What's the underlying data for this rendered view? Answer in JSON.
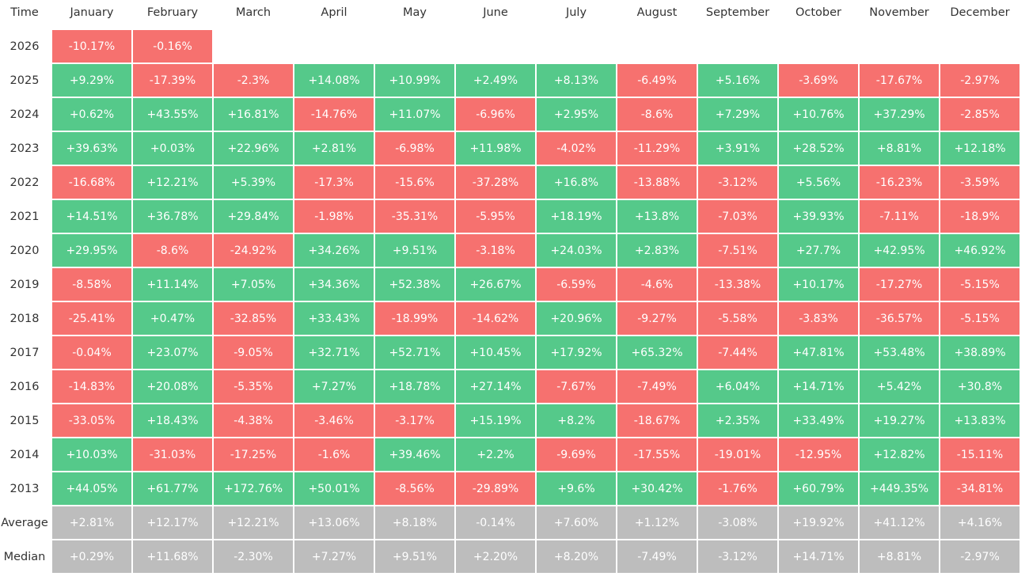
{
  "table": {
    "colors": {
      "positive": "#55c98a",
      "negative": "#f6716f",
      "summary": "#bdbdbd"
    },
    "header": [
      "Time",
      "January",
      "February",
      "March",
      "April",
      "May",
      "June",
      "July",
      "August",
      "September",
      "October",
      "November",
      "December"
    ],
    "rows": [
      [
        "2026",
        "-10.17%",
        "-0.16%"
      ],
      [
        "2025",
        "+9.29%",
        "-17.39%",
        "-2.3%",
        "+14.08%",
        "+10.99%",
        "+2.49%",
        "+8.13%",
        "-6.49%",
        "+5.16%",
        "-3.69%",
        "-17.67%",
        "-2.97%"
      ],
      [
        "2024",
        "+0.62%",
        "+43.55%",
        "+16.81%",
        "-14.76%",
        "+11.07%",
        "-6.96%",
        "+2.95%",
        "-8.6%",
        "+7.29%",
        "+10.76%",
        "+37.29%",
        "-2.85%"
      ],
      [
        "2023",
        "+39.63%",
        "+0.03%",
        "+22.96%",
        "+2.81%",
        "-6.98%",
        "+11.98%",
        "-4.02%",
        "-11.29%",
        "+3.91%",
        "+28.52%",
        "+8.81%",
        "+12.18%"
      ],
      [
        "2022",
        "-16.68%",
        "+12.21%",
        "+5.39%",
        "-17.3%",
        "-15.6%",
        "-37.28%",
        "+16.8%",
        "-13.88%",
        "-3.12%",
        "+5.56%",
        "-16.23%",
        "-3.59%"
      ],
      [
        "2021",
        "+14.51%",
        "+36.78%",
        "+29.84%",
        "-1.98%",
        "-35.31%",
        "-5.95%",
        "+18.19%",
        "+13.8%",
        "-7.03%",
        "+39.93%",
        "-7.11%",
        "-18.9%"
      ],
      [
        "2020",
        "+29.95%",
        "-8.6%",
        "-24.92%",
        "+34.26%",
        "+9.51%",
        "-3.18%",
        "+24.03%",
        "+2.83%",
        "-7.51%",
        "+27.7%",
        "+42.95%",
        "+46.92%"
      ],
      [
        "2019",
        "-8.58%",
        "+11.14%",
        "+7.05%",
        "+34.36%",
        "+52.38%",
        "+26.67%",
        "-6.59%",
        "-4.6%",
        "-13.38%",
        "+10.17%",
        "-17.27%",
        "-5.15%"
      ],
      [
        "2018",
        "-25.41%",
        "+0.47%",
        "-32.85%",
        "+33.43%",
        "-18.99%",
        "-14.62%",
        "+20.96%",
        "-9.27%",
        "-5.58%",
        "-3.83%",
        "-36.57%",
        "-5.15%"
      ],
      [
        "2017",
        "-0.04%",
        "+23.07%",
        "-9.05%",
        "+32.71%",
        "+52.71%",
        "+10.45%",
        "+17.92%",
        "+65.32%",
        "-7.44%",
        "+47.81%",
        "+53.48%",
        "+38.89%"
      ],
      [
        "2016",
        "-14.83%",
        "+20.08%",
        "-5.35%",
        "+7.27%",
        "+18.78%",
        "+27.14%",
        "-7.67%",
        "-7.49%",
        "+6.04%",
        "+14.71%",
        "+5.42%",
        "+30.8%"
      ],
      [
        "2015",
        "-33.05%",
        "+18.43%",
        "-4.38%",
        "-3.46%",
        "-3.17%",
        "+15.19%",
        "+8.2%",
        "-18.67%",
        "+2.35%",
        "+33.49%",
        "+19.27%",
        "+13.83%"
      ],
      [
        "2014",
        "+10.03%",
        "-31.03%",
        "-17.25%",
        "-1.6%",
        "+39.46%",
        "+2.2%",
        "-9.69%",
        "-17.55%",
        "-19.01%",
        "-12.95%",
        "+12.82%",
        "-15.11%"
      ],
      [
        "2013",
        "+44.05%",
        "+61.77%",
        "+172.76%",
        "+50.01%",
        "-8.56%",
        "-29.89%",
        "+9.6%",
        "+30.42%",
        "-1.76%",
        "+60.79%",
        "+449.35%",
        "-34.81%"
      ]
    ],
    "summary_rows": [
      [
        "Average",
        "+2.81%",
        "+12.17%",
        "+12.21%",
        "+13.06%",
        "+8.18%",
        "-0.14%",
        "+7.60%",
        "+1.12%",
        "-3.08%",
        "+19.92%",
        "+41.12%",
        "+4.16%"
      ],
      [
        "Median",
        "+0.29%",
        "+11.68%",
        "-2.30%",
        "+7.27%",
        "+9.51%",
        "+2.20%",
        "+8.20%",
        "-7.49%",
        "-3.12%",
        "+14.71%",
        "+8.81%",
        "-2.97%"
      ]
    ]
  }
}
